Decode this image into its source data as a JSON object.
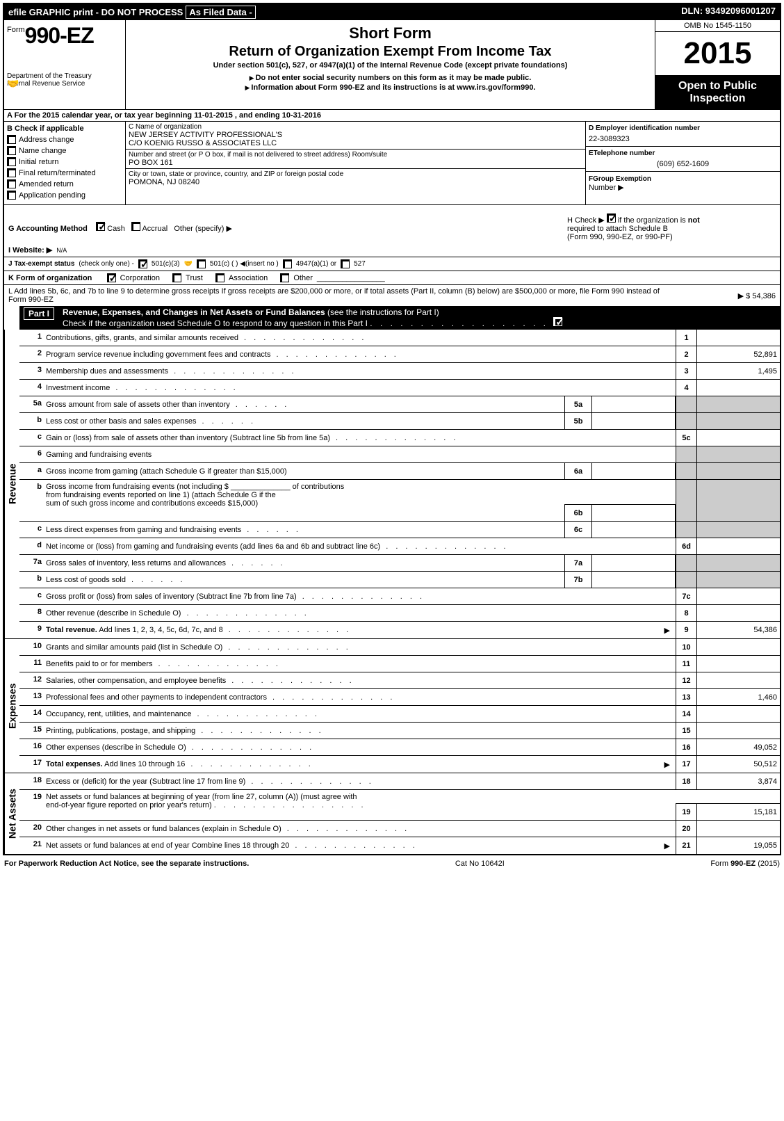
{
  "top_bar": {
    "left": "efile GRAPHIC print - DO NOT PROCESS",
    "mid": "As Filed Data -",
    "right": "DLN: 93492096001207"
  },
  "header": {
    "form_prefix": "Form",
    "form_number": "990-EZ",
    "dept1": "Department of the Treasury",
    "dept2": "Internal Revenue Service",
    "short_form": "Short Form",
    "title": "Return of Organization Exempt From Income Tax",
    "under": "Under section 501(c), 527, or 4947(a)(1) of the Internal Revenue Code (except private foundations)",
    "note1": "Do not enter social security numbers on this form as it may be made public.",
    "note2": "Information about Form 990-EZ and its instructions is at ",
    "note2_link": "www.irs.gov/form990",
    "omb": "OMB No 1545-1150",
    "year": "2015",
    "open1": "Open to Public",
    "open2": "Inspection"
  },
  "row_a": "A  For the 2015 calendar year, or tax year beginning 11-01-2015                    , and ending 10-31-2016",
  "section_b": {
    "title": "B  Check if applicable",
    "items": [
      "Address change",
      "Name change",
      "Initial return",
      "Final return/terminated",
      "Amended return",
      "Application pending"
    ]
  },
  "section_c": {
    "label": "C Name of organization",
    "name1": "NEW JERSEY ACTIVITY PROFESSIONAL'S",
    "name2": "C/O KOENIG RUSSO & ASSOCIATES LLC",
    "addr_label": "Number and street (or P O box, if mail is not delivered to street address) Room/suite",
    "addr": "PO BOX 161",
    "city_label": "City or town, state or province, country, and ZIP or foreign postal code",
    "city": "POMONA, NJ 08240"
  },
  "section_d": {
    "d_label": "D Employer identification number",
    "d_value": "22-3089323",
    "e_label": "ETelephone number",
    "e_value": "(609) 652-1609",
    "f_label": "FGroup Exemption",
    "f_label2": "Number  ▶"
  },
  "line_g": {
    "label": "G Accounting Method",
    "cash": "Cash",
    "accrual": "Accrual",
    "other": "Other (specify) ▶",
    "h_text1": "H   Check ▶",
    "h_text2": "if the organization is",
    "h_not": "not",
    "h_text3": "required to attach Schedule B",
    "h_text4": "(Form 990, 990-EZ, or 990-PF)"
  },
  "line_i": {
    "label": "I Website: ▶",
    "value": "N/A"
  },
  "line_j": {
    "label": "J Tax-exempt status",
    "note": "(check only one) -",
    "opt1": "501(c)(3)",
    "opt2": "501(c) (  ) ◀(insert no )",
    "opt3": "4947(a)(1) or",
    "opt4": "527"
  },
  "line_k": {
    "label": "K Form of organization",
    "opts": [
      "Corporation",
      "Trust",
      "Association",
      "Other"
    ]
  },
  "line_l": {
    "text": "L Add lines 5b, 6c, and 7b to line 9 to determine gross receipts  If gross receipts are $200,000 or more, or if total assets (Part II, column (B) below) are $500,000 or more, file Form 990 instead of Form 990-EZ",
    "value": "▶ $ 54,386"
  },
  "part1": {
    "label": "Part I",
    "title_bold": "Revenue, Expenses, and Changes in Net Assets or Fund Balances",
    "title_rest": " (see the instructions for Part I)",
    "subtitle": "Check if the organization used Schedule O to respond to any question in this Part I"
  },
  "revenue_label": "Revenue",
  "expenses_label": "Expenses",
  "netassets_label": "Net Assets",
  "lines": {
    "1": {
      "t": "Contributions, gifts, grants, and similar amounts received",
      "v": ""
    },
    "2": {
      "t": "Program service revenue including government fees and contracts",
      "v": "52,891"
    },
    "3": {
      "t": "Membership dues and assessments",
      "v": "1,495"
    },
    "4": {
      "t": "Investment income",
      "v": ""
    },
    "5a": {
      "t": "Gross amount from sale of assets other than inventory"
    },
    "5b": {
      "t": "Less  cost or other basis and sales expenses"
    },
    "5c": {
      "t": "Gain or (loss) from sale of assets other than inventory (Subtract line 5b from line 5a)",
      "v": ""
    },
    "6": {
      "t": "Gaming and fundraising events"
    },
    "6a": {
      "t": "Gross income from gaming (attach Schedule G if greater than $15,000)"
    },
    "6b_1": "Gross income from fundraising events (not including $ ______________ of contributions",
    "6b_2": "from fundraising events reported on line 1) (attach Schedule G if the",
    "6b_3": "sum of such gross income and contributions exceeds $15,000)",
    "6c": {
      "t": "Less  direct expenses from gaming and fundraising events"
    },
    "6d": {
      "t": "Net income or (loss) from gaming and fundraising events (add lines 6a and 6b and subtract line 6c)",
      "v": ""
    },
    "7a": {
      "t": "Gross sales of inventory, less returns and allowances"
    },
    "7b": {
      "t": "Less  cost of goods sold"
    },
    "7c": {
      "t": "Gross profit or (loss) from sales of inventory (Subtract line 7b from line 7a)",
      "v": ""
    },
    "8": {
      "t": "Other revenue (describe in Schedule O)",
      "v": ""
    },
    "9": {
      "t": "Total revenue. Add lines 1, 2, 3, 4, 5c, 6d, 7c, and 8",
      "v": "54,386",
      "bold": true
    },
    "10": {
      "t": "Grants and similar amounts paid (list in Schedule O)",
      "v": ""
    },
    "11": {
      "t": "Benefits paid to or for members",
      "v": ""
    },
    "12": {
      "t": "Salaries, other compensation, and employee benefits",
      "v": ""
    },
    "13": {
      "t": "Professional fees and other payments to independent contractors",
      "v": "1,460"
    },
    "14": {
      "t": "Occupancy, rent, utilities, and maintenance",
      "v": ""
    },
    "15": {
      "t": "Printing, publications, postage, and shipping",
      "v": ""
    },
    "16": {
      "t": "Other expenses (describe in Schedule O)",
      "v": "49,052"
    },
    "17": {
      "t": "Total expenses. Add lines 10 through 16",
      "v": "50,512",
      "bold": true
    },
    "18": {
      "t": "Excess or (deficit) for the year (Subtract line 17 from line 9)",
      "v": "3,874"
    },
    "19_1": "Net assets or fund balances at beginning of year (from line 27, column (A)) (must agree with",
    "19_2": "end-of-year figure reported on prior year's return)",
    "19v": "15,181",
    "20": {
      "t": "Other changes in net assets or fund balances (explain in Schedule O)",
      "v": ""
    },
    "21": {
      "t": "Net assets or fund balances at end of year  Combine lines 18 through 20",
      "v": "19,055"
    }
  },
  "footer": {
    "left": "For Paperwork Reduction Act Notice, see the separate instructions.",
    "mid": "Cat No 10642I",
    "right": "Form 990-EZ (2015)"
  }
}
